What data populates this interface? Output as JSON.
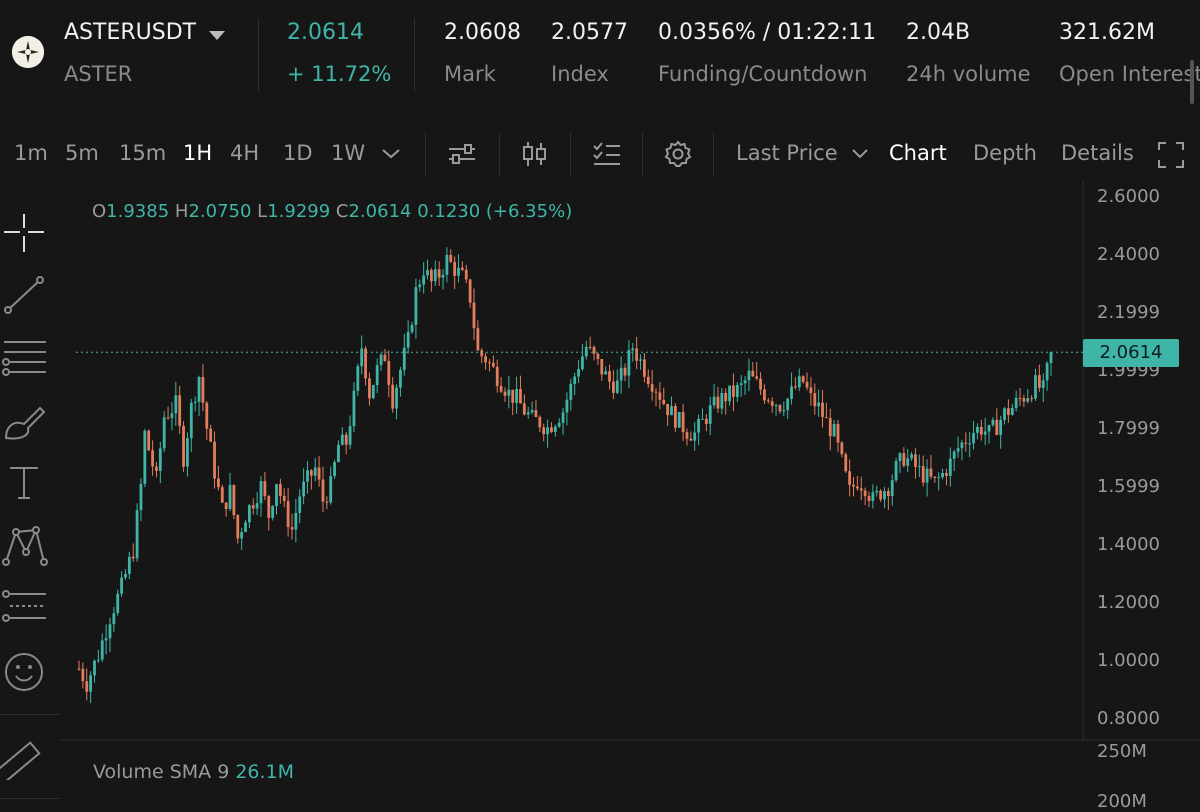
{
  "header": {
    "symbol": "ASTERUSDT",
    "base": "ASTER",
    "last_price": "2.0614",
    "change_pct": "+ 11.72%",
    "stats": [
      {
        "value": "2.0608",
        "label": "Mark"
      },
      {
        "value": "2.0577",
        "label": "Index"
      },
      {
        "value": "0.0356% / 01:22:11",
        "label": "Funding/Countdown"
      },
      {
        "value": "2.04B",
        "label": "24h volume"
      },
      {
        "value": "321.62M",
        "label": "Open Interest"
      }
    ]
  },
  "toolbar": {
    "timeframes": [
      "1m",
      "5m",
      "15m",
      "1H",
      "4H",
      "1D",
      "1W"
    ],
    "active_timeframe": "1H",
    "price_type": "Last Price",
    "view_tabs": [
      "Chart",
      "Depth",
      "Details"
    ],
    "active_view": "Chart",
    "icons": [
      "chevron-down-icon",
      "indicators-icon",
      "candle-type-icon",
      "checklist-icon",
      "gear-icon",
      "fullscreen-icon"
    ]
  },
  "left_tools": [
    "crosshair-icon",
    "trendline-icon",
    "horizontal-lines-icon",
    "brush-icon",
    "text-icon",
    "pattern-icon",
    "fib-icon",
    "emoji-icon",
    "ruler-icon"
  ],
  "ohlc": {
    "o_label": "O",
    "o": "1.9385",
    "h_label": "H",
    "h": "2.0750",
    "l_label": "L",
    "l": "1.9299",
    "c_label": "C",
    "c": "2.0614",
    "change": "0.1230 (+6.35%)"
  },
  "price_axis": {
    "ticks": [
      "2.6000",
      "2.4000",
      "2.1999",
      "1.9999",
      "1.7999",
      "1.5999",
      "1.4000",
      "1.2000",
      "1.0000",
      "0.8000"
    ],
    "current_price": "2.0614"
  },
  "volume": {
    "label": "Volume SMA 9",
    "value": "26.1M",
    "axis_ticks": [
      "250M",
      "200M"
    ]
  },
  "colors": {
    "up": "#3fb5a8",
    "down": "#e37d5b",
    "background": "#161616"
  },
  "chart_data": {
    "type": "candlestick",
    "ylim": [
      0.8,
      2.6
    ],
    "path": [
      [
        0,
        0.97
      ],
      [
        2,
        0.92
      ],
      [
        5,
        1.02
      ],
      [
        8,
        1.15
      ],
      [
        11,
        1.25
      ],
      [
        14,
        1.38
      ],
      [
        16,
        1.6
      ],
      [
        17,
        1.78
      ],
      [
        20,
        1.62
      ],
      [
        22,
        1.84
      ],
      [
        25,
        1.88
      ],
      [
        27,
        1.7
      ],
      [
        29,
        1.87
      ],
      [
        31,
        1.98
      ],
      [
        33,
        1.8
      ],
      [
        35,
        1.65
      ],
      [
        37,
        1.52
      ],
      [
        39,
        1.58
      ],
      [
        41,
        1.42
      ],
      [
        43,
        1.5
      ],
      [
        45,
        1.55
      ],
      [
        47,
        1.6
      ],
      [
        49,
        1.5
      ],
      [
        51,
        1.62
      ],
      [
        53,
        1.52
      ],
      [
        55,
        1.45
      ],
      [
        57,
        1.57
      ],
      [
        59,
        1.62
      ],
      [
        61,
        1.66
      ],
      [
        63,
        1.55
      ],
      [
        65,
        1.6
      ],
      [
        67,
        1.74
      ],
      [
        69,
        1.75
      ],
      [
        71,
        1.9
      ],
      [
        73,
        2.08
      ],
      [
        75,
        1.92
      ],
      [
        77,
        2.0
      ],
      [
        79,
        2.05
      ],
      [
        81,
        1.9
      ],
      [
        83,
        2.0
      ],
      [
        85,
        2.1
      ],
      [
        87,
        2.27
      ],
      [
        89,
        2.35
      ],
      [
        91,
        2.3
      ],
      [
        93,
        2.33
      ],
      [
        95,
        2.38
      ],
      [
        97,
        2.35
      ],
      [
        99,
        2.32
      ],
      [
        101,
        2.25
      ],
      [
        103,
        2.06
      ],
      [
        105,
        2.04
      ],
      [
        107,
        2.0
      ],
      [
        109,
        1.96
      ],
      [
        111,
        1.92
      ],
      [
        113,
        1.9
      ],
      [
        115,
        1.86
      ],
      [
        117,
        1.83
      ],
      [
        119,
        1.82
      ],
      [
        121,
        1.8
      ],
      [
        123,
        1.83
      ],
      [
        125,
        1.86
      ],
      [
        127,
        1.94
      ],
      [
        129,
        2.02
      ],
      [
        131,
        2.08
      ],
      [
        133,
        2.04
      ],
      [
        135,
        2.0
      ],
      [
        137,
        1.96
      ],
      [
        139,
        1.95
      ],
      [
        141,
        2.0
      ],
      [
        143,
        2.08
      ],
      [
        145,
        2.03
      ],
      [
        147,
        1.98
      ],
      [
        149,
        1.94
      ],
      [
        151,
        1.89
      ],
      [
        153,
        1.85
      ],
      [
        155,
        1.82
      ],
      [
        157,
        1.79
      ],
      [
        159,
        1.78
      ],
      [
        161,
        1.82
      ],
      [
        163,
        1.86
      ],
      [
        165,
        1.89
      ],
      [
        167,
        1.91
      ],
      [
        169,
        1.92
      ],
      [
        171,
        1.94
      ],
      [
        173,
        1.98
      ],
      [
        175,
        1.95
      ],
      [
        177,
        1.92
      ],
      [
        179,
        1.9
      ],
      [
        181,
        1.88
      ],
      [
        183,
        1.9
      ],
      [
        185,
        1.94
      ],
      [
        187,
        1.96
      ],
      [
        189,
        1.9
      ],
      [
        191,
        1.87
      ],
      [
        193,
        1.82
      ],
      [
        195,
        1.78
      ],
      [
        197,
        1.68
      ],
      [
        199,
        1.58
      ],
      [
        201,
        1.62
      ],
      [
        203,
        1.6
      ],
      [
        205,
        1.55
      ],
      [
        207,
        1.58
      ],
      [
        209,
        1.6
      ],
      [
        211,
        1.66
      ],
      [
        213,
        1.7
      ],
      [
        215,
        1.68
      ],
      [
        217,
        1.65
      ],
      [
        219,
        1.63
      ],
      [
        221,
        1.61
      ],
      [
        223,
        1.64
      ],
      [
        225,
        1.68
      ],
      [
        227,
        1.73
      ],
      [
        229,
        1.76
      ],
      [
        231,
        1.79
      ],
      [
        233,
        1.8
      ],
      [
        235,
        1.78
      ],
      [
        237,
        1.81
      ],
      [
        239,
        1.85
      ],
      [
        241,
        1.87
      ],
      [
        243,
        1.9
      ],
      [
        245,
        1.92
      ],
      [
        247,
        1.95
      ],
      [
        249,
        1.93
      ],
      [
        251,
        2.06
      ]
    ]
  }
}
